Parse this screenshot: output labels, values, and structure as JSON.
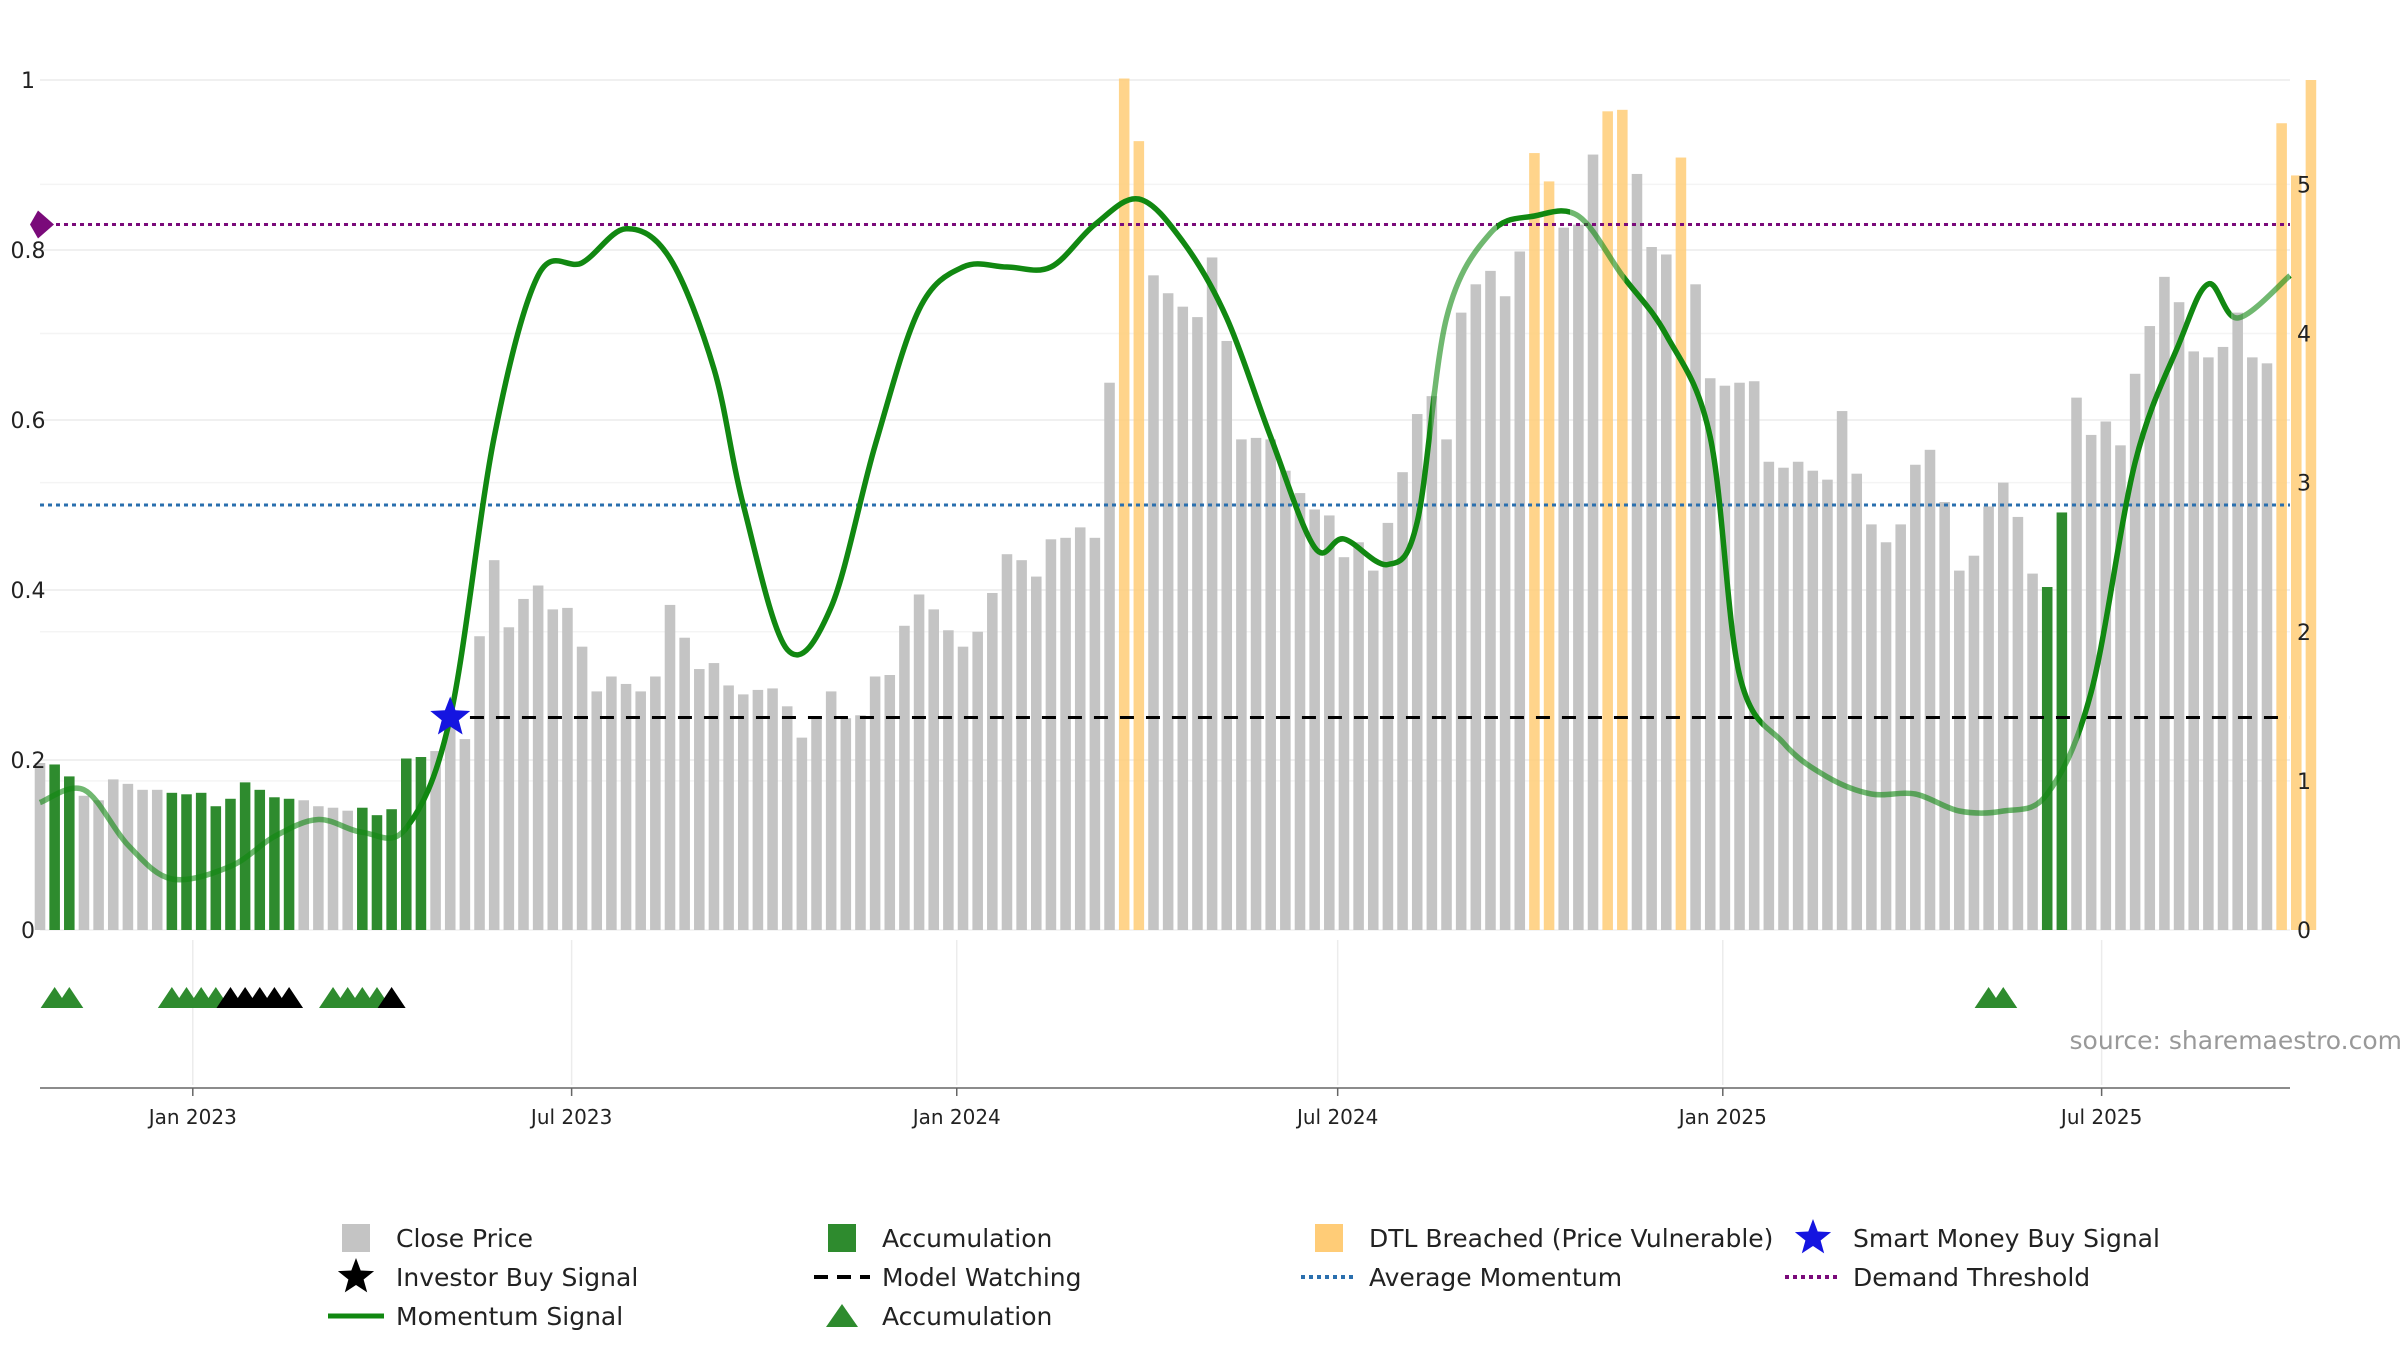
{
  "chart_data": {
    "type": "bar",
    "source": "source: sharemaestro.com",
    "left_axis": {
      "ticks": [
        "0",
        "0.2",
        "0.4",
        "0.6",
        "0.8",
        "1"
      ],
      "range": [
        0,
        1
      ]
    },
    "right_axis": {
      "ticks": [
        "0",
        "1",
        "2",
        "3",
        "4",
        "5"
      ],
      "range": [
        0,
        5.7
      ]
    },
    "x_axis": {
      "range": [
        "2022-10-20",
        "2025-09-29"
      ]
    },
    "x_ticks": [
      {
        "label": "Jan 2023",
        "date": "2023-01-01"
      },
      {
        "label": "Jul 2023",
        "date": "2023-07-01"
      },
      {
        "label": "Jan 2024",
        "date": "2024-01-01"
      },
      {
        "label": "Jul 2024",
        "date": "2024-07-01"
      },
      {
        "label": "Jan 2025",
        "date": "2025-01-01"
      },
      {
        "label": "Jul 2025",
        "date": "2025-07-01"
      }
    ],
    "grid": true,
    "legend_position": "bottom",
    "colors": {
      "close": "#c4c4c4",
      "accumulation": "#2e8b2e",
      "dtl": "#ffcc77",
      "momentum": "#118811",
      "star_smart": "#1515e0",
      "star_investor": "#000000",
      "avg_momentum": "#2a6fae",
      "demand": "#7a0a7a",
      "watching": "#000000"
    },
    "bars": {
      "start_date": "2022-10-20",
      "interval_days": 7,
      "values": [
        1.12,
        1.11,
        1.03,
        0.9,
        0.87,
        1.01,
        0.98,
        0.94,
        0.94,
        0.92,
        0.91,
        0.92,
        0.83,
        0.88,
        0.99,
        0.94,
        0.89,
        0.88,
        0.87,
        0.83,
        0.82,
        0.8,
        0.82,
        0.77,
        0.81,
        1.15,
        1.16,
        1.2,
        1.38,
        1.28,
        1.97,
        2.48,
        2.03,
        2.22,
        2.31,
        2.15,
        2.16,
        1.9,
        1.6,
        1.7,
        1.65,
        1.6,
        1.7,
        2.18,
        1.96,
        1.75,
        1.79,
        1.64,
        1.58,
        1.61,
        1.62,
        1.5,
        1.29,
        1.42,
        1.6,
        1.42,
        1.44,
        1.7,
        1.71,
        2.04,
        2.25,
        2.15,
        2.01,
        1.9,
        2.0,
        2.26,
        2.52,
        2.48,
        2.37,
        2.62,
        2.63,
        2.7,
        2.63,
        3.67,
        5.71,
        5.29,
        4.39,
        4.27,
        4.18,
        4.11,
        4.51,
        3.95,
        3.29,
        3.3,
        3.29,
        3.08,
        2.93,
        2.82,
        2.78,
        2.5,
        2.6,
        2.41,
        2.73,
        3.07,
        3.46,
        3.58,
        3.29,
        4.14,
        4.33,
        4.42,
        4.25,
        4.55,
        5.21,
        5.02,
        4.71,
        4.73,
        5.2,
        5.49,
        5.5,
        5.07,
        4.58,
        4.53,
        5.18,
        4.33,
        3.7,
        3.65,
        3.67,
        3.68,
        3.14,
        3.1,
        3.14,
        3.08,
        3.02,
        3.48,
        3.06,
        2.72,
        2.6,
        2.72,
        3.12,
        3.22,
        2.87,
        2.41,
        2.51,
        2.84,
        3.0,
        2.77,
        2.39,
        2.3,
        2.8,
        3.57,
        3.32,
        3.41,
        3.25,
        3.73,
        4.05,
        4.38,
        4.21,
        3.88,
        3.84,
        3.91,
        4.14,
        3.84,
        3.8,
        5.41,
        5.06,
        5.7
      ],
      "categories": [
        "G",
        "A",
        "A",
        "G",
        "G",
        "G",
        "G",
        "G",
        "G",
        "A",
        "A",
        "A",
        "A",
        "A",
        "A",
        "A",
        "A",
        "A",
        "G",
        "G",
        "G",
        "G",
        "A",
        "A",
        "A",
        "A",
        "A",
        "G",
        "G",
        "G",
        "G",
        "G",
        "G",
        "G",
        "G",
        "G",
        "G",
        "G",
        "G",
        "G",
        "G",
        "G",
        "G",
        "G",
        "G",
        "G",
        "G",
        "G",
        "G",
        "G",
        "G",
        "G",
        "G",
        "G",
        "G",
        "G",
        "G",
        "G",
        "G",
        "G",
        "G",
        "G",
        "G",
        "G",
        "G",
        "G",
        "G",
        "G",
        "G",
        "G",
        "G",
        "G",
        "G",
        "G",
        "O",
        "O",
        "G",
        "G",
        "G",
        "G",
        "G",
        "G",
        "G",
        "G",
        "G",
        "G",
        "G",
        "G",
        "G",
        "G",
        "G",
        "G",
        "G",
        "G",
        "G",
        "G",
        "G",
        "G",
        "G",
        "G",
        "G",
        "G",
        "O",
        "O",
        "G",
        "G",
        "G",
        "O",
        "O",
        "G",
        "G",
        "G",
        "O",
        "G",
        "G",
        "G",
        "G",
        "G",
        "G",
        "G",
        "G",
        "G",
        "G",
        "G",
        "G",
        "G",
        "G",
        "G",
        "G",
        "G",
        "G",
        "G",
        "G",
        "G",
        "G",
        "G",
        "G",
        "A",
        "A",
        "G",
        "G",
        "G",
        "G",
        "G",
        "G",
        "G",
        "G",
        "G",
        "G",
        "G",
        "G",
        "G",
        "G",
        "O",
        "O",
        "O"
      ]
    },
    "momentum": {
      "x": [
        "2022-10-20",
        "2022-11-10",
        "2022-12-01",
        "2022-12-22",
        "2023-01-19",
        "2023-02-09",
        "2023-03-02",
        "2023-03-23",
        "2023-04-13",
        "2023-05-04",
        "2023-05-25",
        "2023-06-15",
        "2023-07-06",
        "2023-07-27",
        "2023-08-17",
        "2023-09-07",
        "2023-09-21",
        "2023-10-12",
        "2023-11-02",
        "2023-11-23",
        "2023-12-14",
        "2024-01-04",
        "2024-01-25",
        "2024-02-15",
        "2024-03-07",
        "2024-03-28",
        "2024-04-18",
        "2024-05-09",
        "2024-05-30",
        "2024-06-20",
        "2024-07-04",
        "2024-07-25",
        "2024-08-08",
        "2024-08-22",
        "2024-09-12",
        "2024-10-03",
        "2024-10-24",
        "2024-11-14",
        "2024-12-05",
        "2024-12-26",
        "2025-01-09",
        "2025-01-30",
        "2025-02-20",
        "2025-03-13",
        "2025-04-03",
        "2025-04-24",
        "2025-05-15",
        "2025-06-05",
        "2025-06-26",
        "2025-07-17",
        "2025-08-07",
        "2025-08-21",
        "2025-09-04",
        "2025-09-29"
      ],
      "y": [
        0.15,
        0.165,
        0.1,
        0.06,
        0.075,
        0.11,
        0.13,
        0.115,
        0.12,
        0.25,
        0.58,
        0.77,
        0.785,
        0.825,
        0.79,
        0.66,
        0.5,
        0.33,
        0.38,
        0.57,
        0.73,
        0.78,
        0.78,
        0.78,
        0.83,
        0.86,
        0.81,
        0.72,
        0.58,
        0.45,
        0.46,
        0.43,
        0.48,
        0.72,
        0.82,
        0.84,
        0.84,
        0.77,
        0.7,
        0.58,
        0.3,
        0.22,
        0.18,
        0.16,
        0.16,
        0.14,
        0.14,
        0.16,
        0.28,
        0.55,
        0.69,
        0.76,
        0.72,
        0.77
      ]
    },
    "momentum_faded_ranges": [
      [
        "2022-10-20",
        "2023-04-13"
      ],
      [
        "2024-08-15",
        "2024-09-15"
      ],
      [
        "2024-10-20",
        "2024-11-15"
      ],
      [
        "2025-01-20",
        "2025-06-20"
      ],
      [
        "2025-09-01",
        "2025-09-29"
      ]
    ],
    "lines": {
      "avg_momentum": 0.5,
      "demand_threshold": 0.83,
      "model_watching": 0.25,
      "model_watching_start": "2023-05-01"
    },
    "smart_money_signal": {
      "date": "2023-05-04",
      "y": 0.25
    },
    "markers": {
      "accumulation": [
        "2022-10-27",
        "2022-11-03",
        "2022-12-22",
        "2022-12-29",
        "2023-01-05",
        "2023-01-12",
        "2023-03-09",
        "2023-03-16",
        "2023-03-23",
        "2023-03-30",
        "2025-05-08",
        "2025-05-15"
      ],
      "investor_buy": [
        "2023-01-19",
        "2023-01-26",
        "2023-02-02",
        "2023-02-09",
        "2023-02-16",
        "2023-04-06"
      ]
    },
    "legend": [
      {
        "label": "Close Price",
        "kind": "square",
        "color": "close"
      },
      {
        "label": "Accumulation",
        "kind": "square",
        "color": "accumulation"
      },
      {
        "label": "DTL Breached (Price Vulnerable)",
        "kind": "square",
        "color": "dtl"
      },
      {
        "label": "Smart Money Buy Signal",
        "kind": "star",
        "color": "star_smart"
      },
      {
        "label": "Investor Buy Signal",
        "kind": "star",
        "color": "star_investor"
      },
      {
        "label": "Model Watching",
        "kind": "dashed",
        "color": "watching"
      },
      {
        "label": "Average Momentum",
        "kind": "dotted",
        "color": "avg_momentum"
      },
      {
        "label": "Demand Threshold",
        "kind": "dotted",
        "color": "demand"
      },
      {
        "label": "Momentum Signal",
        "kind": "line",
        "color": "momentum"
      },
      {
        "label": "Accumulation",
        "kind": "triangle",
        "color": "accumulation"
      }
    ]
  }
}
